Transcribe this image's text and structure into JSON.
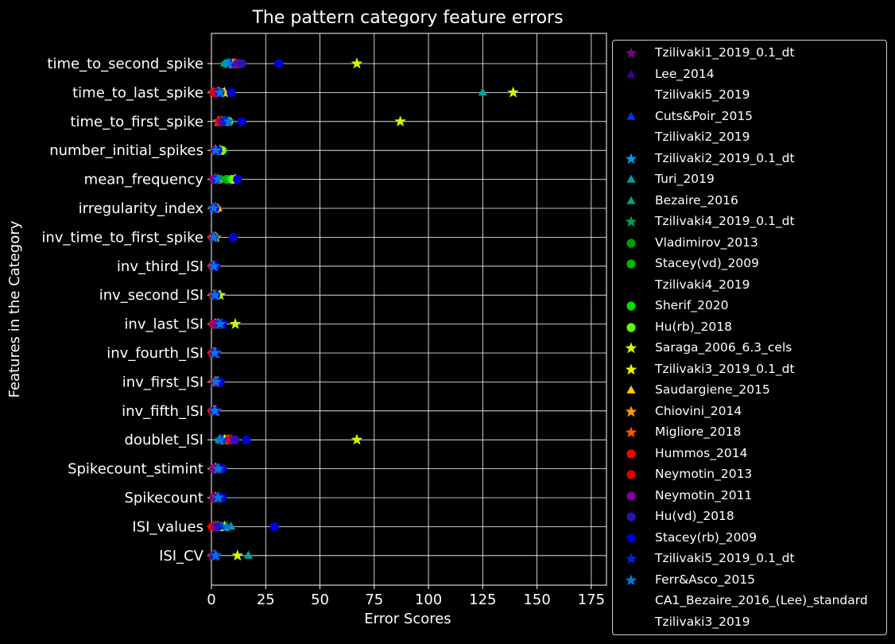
{
  "chart_data": {
    "type": "scatter",
    "title": "The pattern category feature errors",
    "xlabel": "Error Scores",
    "ylabel": "Features in the Category",
    "xlim": [
      0,
      182
    ],
    "xticks": [
      0,
      25,
      50,
      75,
      100,
      125,
      150,
      175
    ],
    "grid": true,
    "legend_placement": "outside-right",
    "categories": [
      "time_to_second_spike",
      "time_to_last_spike",
      "time_to_first_spike",
      "number_initial_spikes",
      "mean_frequency",
      "irregularity_index",
      "inv_time_to_first_spike",
      "inv_third_ISI",
      "inv_second_ISI",
      "inv_last_ISI",
      "inv_fourth_ISI",
      "inv_first_ISI",
      "inv_fifth_ISI",
      "doublet_ISI",
      "Spikecount_stimint",
      "Spikecount",
      "ISI_values",
      "ISI_CV"
    ],
    "series": [
      {
        "name": "Tzilivaki1_2019_0.1_dt",
        "marker": "star",
        "color": "#7b007f",
        "values": [
          10,
          2.5,
          3.5,
          2,
          1.5,
          1,
          1,
          1,
          1.2,
          1.5,
          1,
          1.5,
          1,
          9,
          1.5,
          1.5,
          2,
          1
        ]
      },
      {
        "name": "Lee_2014",
        "marker": "triangle",
        "color": "#3a0096",
        "values": [
          9,
          3,
          4,
          2.5,
          1.5,
          1,
          1.5,
          1,
          1,
          2,
          1,
          2,
          1,
          8,
          2,
          1.5,
          2.5,
          1.5
        ]
      },
      {
        "name": "Tzilivaki5_2019",
        "marker": "none",
        "color": "#000000",
        "values": []
      },
      {
        "name": "Cuts&Poir_2015",
        "marker": "triangle",
        "color": "#0033ff",
        "values": [
          8,
          4,
          7,
          2,
          2,
          1,
          1,
          1,
          1.5,
          4,
          1.2,
          2,
          1.2,
          6,
          2.5,
          2.5,
          3,
          2
        ]
      },
      {
        "name": "Tzilivaki2_2019",
        "marker": "none",
        "color": "#000000",
        "values": []
      },
      {
        "name": "Tzilivaki2_2019_0.1_dt",
        "marker": "star",
        "color": "#0099e0",
        "values": [
          7,
          3.5,
          6,
          1.8,
          2,
          1,
          1.5,
          1.5,
          2,
          5,
          1.5,
          2.5,
          1.5,
          5,
          3,
          3,
          7,
          1.5
        ]
      },
      {
        "name": "Turi_2019",
        "marker": "triangle",
        "color": "#00a0a0",
        "values": [
          12,
          125,
          8,
          2,
          2.5,
          1,
          1,
          1,
          1,
          3,
          1,
          2,
          1,
          4,
          2,
          2,
          9,
          17
        ]
      },
      {
        "name": "Bezaire_2016",
        "marker": "triangle",
        "color": "#00a080",
        "values": [
          6,
          3,
          5,
          2,
          2,
          1,
          1,
          1,
          1,
          3,
          1,
          1.5,
          1,
          3.5,
          2,
          2,
          6,
          2
        ]
      },
      {
        "name": "Tzilivaki4_2019_0.1_dt",
        "marker": "star",
        "color": "#00a050",
        "values": [
          8,
          3,
          6,
          2,
          2,
          1,
          1,
          1,
          1,
          3,
          1,
          1.5,
          1,
          4,
          2,
          2,
          6,
          2
        ]
      },
      {
        "name": "Vladimirov_2013",
        "marker": "circle",
        "color": "#00a000",
        "values": [
          9,
          4,
          5,
          3,
          4,
          1,
          1,
          1,
          1.5,
          3,
          1,
          2,
          1,
          5,
          2,
          2,
          3,
          1.5
        ]
      },
      {
        "name": "Stacey(vd)_2009",
        "marker": "circle",
        "color": "#00b800",
        "values": [
          10,
          5,
          6,
          4,
          7,
          1.5,
          1,
          1,
          2,
          2,
          1,
          2,
          1,
          6,
          2,
          2,
          3,
          1.5
        ]
      },
      {
        "name": "Tzilivaki4_2019",
        "marker": "none",
        "color": "#000000",
        "values": []
      },
      {
        "name": "Sherif_2020",
        "marker": "circle",
        "color": "#00e000",
        "values": [
          11,
          4,
          7,
          4,
          9,
          1.5,
          1,
          1,
          2.5,
          2,
          1,
          2,
          1,
          7,
          2,
          2,
          4,
          1.5
        ]
      },
      {
        "name": "Hu(rb)_2018",
        "marker": "circle",
        "color": "#60ff00",
        "values": [
          9,
          5,
          8,
          5,
          10,
          2,
          1.5,
          1,
          3,
          3,
          1,
          2,
          1,
          8,
          2,
          2,
          5,
          1.5
        ]
      },
      {
        "name": "Saraga_2006_6.3_cels",
        "marker": "star",
        "color": "#c8ff00",
        "values": [
          67,
          139,
          87,
          4,
          11,
          2,
          2,
          1.5,
          4,
          11,
          2,
          3,
          2,
          67,
          3,
          3,
          6,
          12
        ]
      },
      {
        "name": "Tzilivaki3_2019_0.1_dt",
        "marker": "star",
        "color": "#f0f000",
        "values": [
          8,
          6,
          5,
          2,
          3,
          2,
          1,
          1,
          2,
          3,
          1,
          2,
          1,
          6,
          2,
          2,
          3,
          1.5
        ]
      },
      {
        "name": "Saudargiene_2015",
        "marker": "triangle",
        "color": "#ffcc00",
        "values": [
          9,
          5,
          5,
          2,
          3,
          3,
          1,
          1,
          2,
          3,
          1,
          2,
          1,
          7,
          2,
          2,
          3,
          1.5
        ]
      },
      {
        "name": "Chiovini_2014",
        "marker": "star",
        "color": "#ff9900",
        "values": [
          10,
          3,
          4,
          2,
          2,
          2,
          1,
          1,
          1.5,
          2,
          1,
          2,
          1,
          8,
          2,
          2,
          2,
          1
        ]
      },
      {
        "name": "Migliore_2018",
        "marker": "star",
        "color": "#ff5500",
        "values": [
          11,
          1,
          3,
          1.5,
          1.5,
          1,
          1,
          1,
          1,
          1.5,
          1,
          1.5,
          1,
          9,
          1.5,
          1.5,
          1,
          1
        ]
      },
      {
        "name": "Hummos_2014",
        "marker": "circle",
        "color": "#ff0000",
        "values": [
          12,
          1,
          4,
          1.5,
          1,
          1,
          0.5,
          0.5,
          1,
          1,
          0.5,
          1.5,
          0.5,
          8,
          1,
          1,
          0.5,
          0.8
        ]
      },
      {
        "name": "Neymotin_2013",
        "marker": "circle",
        "color": "#e00000",
        "values": [
          13,
          2,
          4,
          1.5,
          1.2,
          1,
          0.8,
          0.8,
          1,
          1.5,
          0.8,
          2,
          0.8,
          9,
          1.2,
          1.2,
          1.5,
          1
        ]
      },
      {
        "name": "Neymotin_2011",
        "marker": "circle",
        "color": "#8000a0",
        "values": [
          12,
          3,
          5,
          2,
          1.5,
          1,
          1,
          1,
          1.5,
          2,
          1,
          2,
          1,
          10,
          1.5,
          1.5,
          2,
          1
        ]
      },
      {
        "name": "Hu(vd)_2018",
        "marker": "circle",
        "color": "#3010b0",
        "values": [
          14,
          4,
          6,
          2,
          12,
          1.5,
          10,
          1.5,
          2,
          4,
          1.5,
          4,
          1.5,
          11,
          3,
          3,
          3,
          2
        ]
      },
      {
        "name": "Stacey(rb)_2009",
        "marker": "circle",
        "color": "#0000dd",
        "values": [
          31,
          9,
          14,
          3,
          12,
          1.5,
          10,
          2,
          2,
          5,
          2,
          4,
          2,
          16,
          5,
          5,
          29,
          2
        ]
      },
      {
        "name": "Tzilivaki5_2019_0.1_dt",
        "marker": "star",
        "color": "#0022dd",
        "values": [
          9,
          4,
          7,
          2,
          2,
          1,
          1.5,
          1.5,
          2,
          4,
          1.5,
          2,
          1.5,
          5,
          4,
          4,
          5,
          1.5
        ]
      },
      {
        "name": "Ferr&Asco_2015",
        "marker": "star",
        "color": "#0077dd",
        "values": [
          8,
          4,
          8,
          2,
          3,
          1,
          1,
          1,
          1.5,
          4,
          1.5,
          2,
          1.5,
          4,
          3,
          3,
          7,
          2
        ]
      },
      {
        "name": "CA1_Bezaire_2016_(Lee)_standard",
        "marker": "none",
        "color": "#000000",
        "values": []
      },
      {
        "name": "Tzilivaki3_2019",
        "marker": "none",
        "color": "#000000",
        "values": []
      }
    ]
  }
}
